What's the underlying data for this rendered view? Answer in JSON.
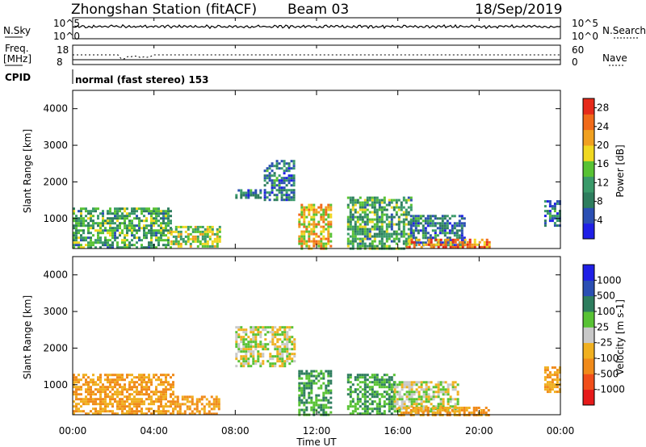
{
  "header": {
    "title": "Zhongshan Station (fitACF)",
    "beam": "Beam 03",
    "date": "18/Sep/2019"
  },
  "labels": {
    "nsky": "N.Sky",
    "nsearch": "N.Search",
    "freq_line1": "Freq.",
    "freq_line2": "[MHz]",
    "nave": "Nave",
    "cpid": "CPID",
    "mode": "normal (fast stereo) 153"
  },
  "noise_axis": {
    "left": [
      "10^5",
      "10^0"
    ],
    "right": [
      "10^5",
      "10^0"
    ]
  },
  "freq_axis": {
    "left": [
      "18",
      "8"
    ],
    "right": [
      "60",
      "0"
    ]
  },
  "colors": {
    "power": [
      "#1f1fe6",
      "#2b4fb3",
      "#2e7d5e",
      "#3a9a6a",
      "#58c234",
      "#f0d820",
      "#f0a020",
      "#f06a1a",
      "#e62a1a"
    ],
    "velocity": [
      "#e61a1a",
      "#f04e1a",
      "#f08a1a",
      "#f0b020",
      "#c8c8c8",
      "#58c234",
      "#2e7d5e",
      "#2b4fb3",
      "#1f1fe6"
    ]
  },
  "chart_data": [
    {
      "type": "heatmap",
      "panel": "power",
      "ylabel": "Slant Range [km]",
      "xlabel": "Time UT",
      "xlim": [
        0,
        24
      ],
      "ylim": [
        180,
        4500
      ],
      "x_ticks": [
        "00:00",
        "04:00",
        "08:00",
        "12:00",
        "16:00",
        "20:00",
        "00:00"
      ],
      "y_ticks": [
        1000,
        2000,
        3000,
        4000
      ],
      "colorbar": {
        "label": "Power [dB]",
        "ticks": [
          "4",
          "8",
          "12",
          "16",
          "20",
          "24",
          "28"
        ],
        "range": [
          0,
          30
        ]
      },
      "regions": [
        {
          "t": [
            0.0,
            4.8
          ],
          "r": [
            200,
            1300
          ],
          "value": 12
        },
        {
          "t": [
            4.8,
            7.2
          ],
          "r": [
            220,
            800
          ],
          "value": 16
        },
        {
          "t": [
            9.4,
            10.9
          ],
          "r": [
            1500,
            2600
          ],
          "value": 8
        },
        {
          "t": [
            8.0,
            9.3
          ],
          "r": [
            1550,
            1800
          ],
          "value": 8
        },
        {
          "t": [
            11.1,
            12.7
          ],
          "r": [
            200,
            1400
          ],
          "value": 20
        },
        {
          "t": [
            13.5,
            16.6
          ],
          "r": [
            200,
            1600
          ],
          "value": 12
        },
        {
          "t": [
            16.6,
            19.3
          ],
          "r": [
            250,
            1100
          ],
          "value": 8
        },
        {
          "t": [
            16.4,
            20.5
          ],
          "r": [
            200,
            450
          ],
          "value": 24
        },
        {
          "t": [
            23.2,
            24.0
          ],
          "r": [
            800,
            1500
          ],
          "value": 8
        }
      ]
    },
    {
      "type": "heatmap",
      "panel": "velocity",
      "ylabel": "Slant Range [km]",
      "xlabel": "Time UT",
      "xlim": [
        0,
        24
      ],
      "ylim": [
        180,
        4500
      ],
      "x_ticks": [
        "00:00",
        "04:00",
        "08:00",
        "12:00",
        "16:00",
        "20:00",
        "00:00"
      ],
      "y_ticks": [
        1000,
        2000,
        3000,
        4000
      ],
      "colorbar": {
        "label": "Velocity [m s-1]",
        "ticks": [
          "1000",
          "500",
          "100",
          "25",
          "-25",
          "-100",
          "-500",
          "-1000"
        ]
      },
      "regions": [
        {
          "t": [
            0.0,
            5.0
          ],
          "r": [
            200,
            1300
          ],
          "value": -100
        },
        {
          "t": [
            5.0,
            7.2
          ],
          "r": [
            220,
            700
          ],
          "value": -100
        },
        {
          "t": [
            8.0,
            10.9
          ],
          "r": [
            1500,
            2600
          ],
          "value": 0
        },
        {
          "t": [
            11.1,
            12.7
          ],
          "r": [
            200,
            1400
          ],
          "value": 100
        },
        {
          "t": [
            13.5,
            15.8
          ],
          "r": [
            200,
            1300
          ],
          "value": 100
        },
        {
          "t": [
            15.8,
            19.0
          ],
          "r": [
            250,
            1100
          ],
          "value": 0
        },
        {
          "t": [
            16.0,
            20.5
          ],
          "r": [
            200,
            400
          ],
          "value": -100
        },
        {
          "t": [
            23.2,
            24.0
          ],
          "r": [
            800,
            1500
          ],
          "value": -100
        }
      ]
    }
  ]
}
